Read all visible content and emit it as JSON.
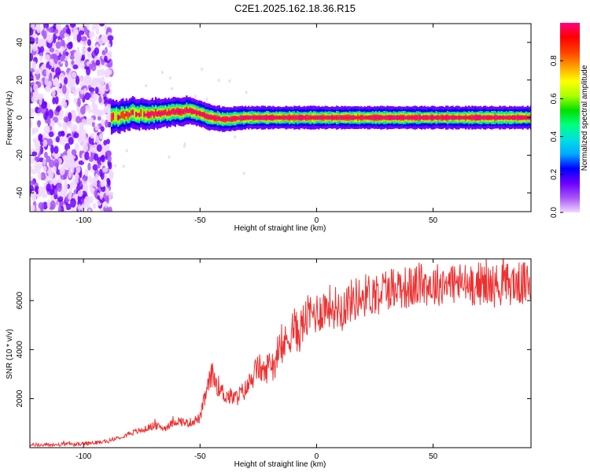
{
  "title": "C2E1.2025.162.18.36.R15",
  "chart_data": [
    {
      "type": "heatmap",
      "xlabel": "Height of straight line (km)",
      "ylabel": "Frequency (Hz)",
      "xlim": [
        -123,
        92
      ],
      "ylim": [
        -50,
        50
      ],
      "xticks": [
        -100,
        -50,
        0,
        50
      ],
      "yticks": [
        -40,
        -20,
        0,
        20,
        40
      ],
      "grid": false,
      "colorbar": {
        "label": "Normalized spectral amplitude",
        "range": [
          0,
          1
        ],
        "ticks": [
          "0.0",
          "0.2",
          "0.4",
          "0.6",
          "0.8"
        ],
        "colormap": [
          "#f0d8ff",
          "#a855f7",
          "#6d00ff",
          "#0000ff",
          "#00aaff",
          "#00e0e0",
          "#00ff7f",
          "#00e000",
          "#aaff00",
          "#ffff00",
          "#ffa000",
          "#ff4000",
          "#ff0000",
          "#ff0080"
        ]
      },
      "features": {
        "noise_region_x": [
          -123,
          -88
        ],
        "signal_start_x": -88,
        "center_frequency_trend": [
          [
            -88,
            0
          ],
          [
            -80,
            2
          ],
          [
            -70,
            2
          ],
          [
            -60,
            3
          ],
          [
            -55,
            4
          ],
          [
            -50,
            2
          ],
          [
            -45,
            0
          ],
          [
            -40,
            -1
          ],
          [
            -30,
            0
          ],
          [
            -20,
            0
          ],
          [
            -10,
            0
          ],
          [
            0,
            0
          ],
          [
            20,
            0
          ],
          [
            40,
            0
          ],
          [
            60,
            0
          ],
          [
            92,
            0
          ]
        ]
      }
    },
    {
      "type": "line",
      "xlabel": "Height of straight line (km)",
      "ylabel": "SNR (10 * v/v)",
      "xlim": [
        -123,
        92
      ],
      "ylim": [
        0,
        7700
      ],
      "xticks": [
        -100,
        -50,
        0,
        50
      ],
      "yticks": [
        2000,
        4000,
        6000
      ],
      "grid": false,
      "series": [
        {
          "color": "#ee3030",
          "x": [
            -123,
            -110,
            -100,
            -90,
            -85,
            -80,
            -75,
            -70,
            -65,
            -60,
            -55,
            -50,
            -48,
            -45,
            -42,
            -40,
            -35,
            -30,
            -28,
            -25,
            -22,
            -20,
            -18,
            -15,
            -12,
            -10,
            -8,
            -5,
            -3,
            0,
            5,
            10,
            15,
            20,
            25,
            30,
            35,
            40,
            45,
            50,
            55,
            60,
            65,
            70,
            75,
            80,
            85,
            92
          ],
          "y": [
            100,
            120,
            150,
            250,
            400,
            600,
            700,
            900,
            800,
            1100,
            1000,
            1200,
            2000,
            3000,
            2500,
            2200,
            2000,
            2400,
            2800,
            3300,
            3000,
            3600,
            3400,
            4000,
            4500,
            5000,
            4600,
            5200,
            5400,
            5500,
            5800,
            5700,
            6000,
            6200,
            6300,
            6500,
            6600,
            6500,
            6700,
            6600,
            6750,
            6700,
            6650,
            6700,
            6600,
            6650,
            6700,
            6650
          ]
        }
      ]
    }
  ]
}
